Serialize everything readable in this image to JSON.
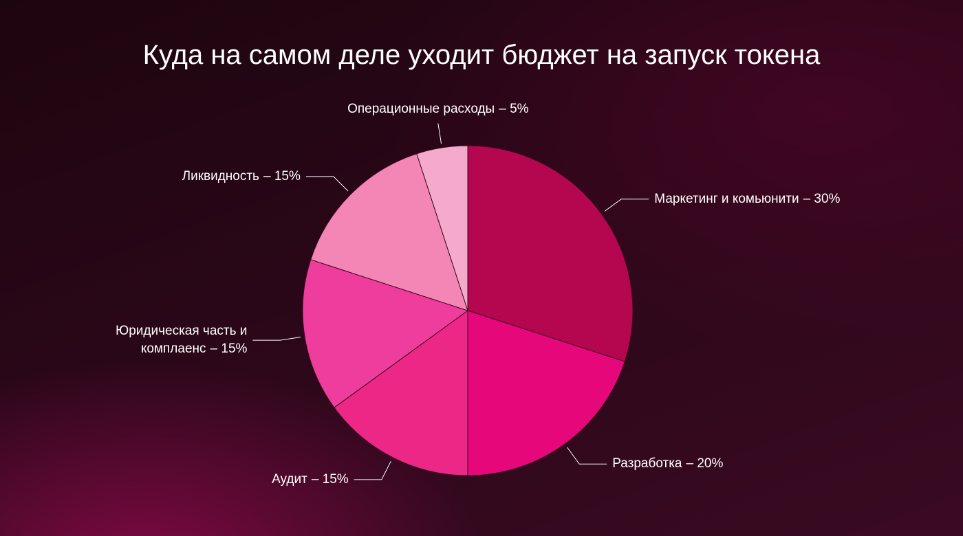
{
  "chart_data": {
    "type": "pie",
    "title": "Куда на самом деле уходит бюджет на запуск токена",
    "categories": [
      "Маркетинг и комьюнити",
      "Разработка",
      "Аудит",
      "Юридическая часть и комплаенс",
      "Ликвидность",
      "Операционные расходы"
    ],
    "values": [
      30,
      20,
      15,
      15,
      15,
      5
    ],
    "value_labels": [
      "– 30%",
      "– 20%",
      "– 15%",
      "– 15%",
      "– 15%",
      "– 5%"
    ],
    "colors": [
      "#b4074f",
      "#e6087a",
      "#ec2785",
      "#ef3d9d",
      "#f486b5",
      "#f5aacb"
    ]
  }
}
